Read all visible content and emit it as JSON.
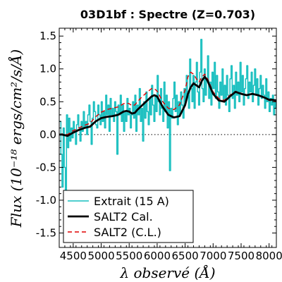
{
  "chart_data": {
    "type": "line",
    "title": "03D1bf : Spectre (Z=0.703)",
    "xlabel": "λ observé (Å)",
    "ylabel": "Flux (10⁻¹⁸ ergs/cm²/s/Å)",
    "xlim": [
      4250,
      8130
    ],
    "ylim": [
      -1.72,
      1.62
    ],
    "xticks": [
      "4500",
      "5000",
      "5500",
      "6000",
      "6500",
      "7000",
      "7500",
      "8000"
    ],
    "yticks": [
      "1.5",
      "1.0",
      "0.5",
      "0.0",
      "-0.5",
      "-1.0",
      "-1.5"
    ],
    "zero_line": true,
    "legend_position": "bottom-left",
    "colors": {
      "extrait": "#17bfbf",
      "salt2_cal": "#000000",
      "salt2_cl": "#e00000"
    },
    "series": [
      {
        "name": "Extrait (15 A)",
        "style": "steps",
        "x": [
          4250,
          4280,
          4300,
          4320,
          4340,
          4360,
          4380,
          4400,
          4420,
          4440,
          4460,
          4480,
          4500,
          4520,
          4540,
          4560,
          4580,
          4600,
          4620,
          4640,
          4660,
          4680,
          4700,
          4720,
          4740,
          4760,
          4780,
          4800,
          4820,
          4840,
          4860,
          4880,
          4900,
          4920,
          4940,
          4960,
          4980,
          5000,
          5020,
          5040,
          5060,
          5080,
          5100,
          5120,
          5140,
          5160,
          5180,
          5200,
          5220,
          5240,
          5260,
          5280,
          5300,
          5320,
          5340,
          5360,
          5380,
          5400,
          5420,
          5440,
          5460,
          5480,
          5500,
          5520,
          5540,
          5560,
          5580,
          5600,
          5620,
          5640,
          5660,
          5680,
          5700,
          5720,
          5740,
          5760,
          5780,
          5800,
          5820,
          5840,
          5860,
          5880,
          5900,
          5920,
          5940,
          5960,
          5980,
          6000,
          6020,
          6040,
          6060,
          6080,
          6100,
          6120,
          6140,
          6160,
          6180,
          6200,
          6220,
          6240,
          6260,
          6280,
          6300,
          6320,
          6340,
          6360,
          6380,
          6400,
          6420,
          6440,
          6460,
          6480,
          6500,
          6520,
          6540,
          6560,
          6580,
          6600,
          6620,
          6640,
          6660,
          6680,
          6700,
          6720,
          6740,
          6760,
          6780,
          6800,
          6820,
          6840,
          6860,
          6880,
          6900,
          6920,
          6940,
          6960,
          6980,
          7000,
          7020,
          7040,
          7060,
          7080,
          7100,
          7120,
          7140,
          7160,
          7180,
          7200,
          7220,
          7240,
          7260,
          7280,
          7300,
          7320,
          7340,
          7360,
          7380,
          7400,
          7420,
          7440,
          7460,
          7480,
          7500,
          7520,
          7540,
          7560,
          7580,
          7600,
          7620,
          7640,
          7660,
          7680,
          7700,
          7720,
          7740,
          7760,
          7780,
          7800,
          7820,
          7840,
          7860,
          7880,
          7900,
          7920,
          7940,
          7960,
          7980,
          8000,
          8020,
          8040,
          8060,
          8080,
          8100,
          8120
        ],
        "y": [
          0.2,
          -0.3,
          -0.8,
          0.1,
          -0.5,
          -1.2,
          0.3,
          -0.2,
          0.25,
          -0.1,
          0.1,
          -0.05,
          0.2,
          0.05,
          -0.15,
          0.15,
          0.3,
          0.1,
          -0.1,
          0.2,
          0.05,
          0.35,
          0.1,
          0.2,
          0.0,
          0.3,
          0.45,
          0.2,
          -0.15,
          0.25,
          0.5,
          0.35,
          0.15,
          0.1,
          0.45,
          0.3,
          0.15,
          0.5,
          0.2,
          0.35,
          0.1,
          0.6,
          0.3,
          0.45,
          0.05,
          0.55,
          0.3,
          0.4,
          0.2,
          0.5,
          0.35,
          -0.3,
          0.45,
          0.3,
          0.6,
          0.2,
          0.45,
          0.05,
          0.35,
          0.2,
          0.55,
          0.3,
          0.4,
          0.1,
          0.3,
          0.5,
          0.25,
          0.6,
          0.05,
          0.45,
          0.3,
          0.7,
          0.2,
          0.4,
          -0.1,
          0.5,
          0.25,
          0.65,
          0.35,
          0.15,
          0.55,
          0.3,
          0.75,
          0.45,
          0.2,
          0.6,
          0.35,
          0.9,
          0.5,
          0.3,
          0.7,
          0.4,
          0.2,
          0.8,
          0.35,
          0.6,
          0.1,
          0.5,
          -0.55,
          0.4,
          0.25,
          0.55,
          0.8,
          0.35,
          0.6,
          0.15,
          0.5,
          0.3,
          0.65,
          0.45,
          0.25,
          0.7,
          0.5,
          0.9,
          0.6,
          0.4,
          1.15,
          0.7,
          0.5,
          0.9,
          0.4,
          0.8,
          1.1,
          0.65,
          0.45,
          0.95,
          1.45,
          0.7,
          0.5,
          1.0,
          0.6,
          0.85,
          1.2,
          0.55,
          0.8,
          0.45,
          0.95,
          0.7,
          1.1,
          0.55,
          0.9,
          0.65,
          0.4,
          0.8,
          0.6,
          1.0,
          0.5,
          0.75,
          0.45,
          0.9,
          0.6,
          0.35,
          0.85,
          1.05,
          0.55,
          0.75,
          0.4,
          0.95,
          0.6,
          0.8,
          0.5,
          1.1,
          0.65,
          0.9,
          0.45,
          0.7,
          0.85,
          1.05,
          0.55,
          0.8,
          0.65,
          0.95,
          0.5,
          0.75,
          1.0,
          0.6,
          0.85,
          0.45,
          0.7,
          0.9,
          0.55,
          0.75,
          0.6,
          0.4,
          0.85,
          0.5,
          0.65,
          0.35,
          0.55,
          0.45,
          0.6,
          0.3,
          0.5,
          0.4
        ]
      },
      {
        "name": "SALT2 Cal.",
        "style": "solid",
        "x": [
          4250,
          4300,
          4400,
          4500,
          4600,
          4700,
          4800,
          4900,
          5000,
          5100,
          5200,
          5300,
          5400,
          5450,
          5500,
          5550,
          5600,
          5650,
          5700,
          5800,
          5900,
          5950,
          6000,
          6100,
          6200,
          6300,
          6400,
          6500,
          6550,
          6600,
          6650,
          6700,
          6750,
          6800,
          6850,
          6900,
          6950,
          7000,
          7100,
          7200,
          7300,
          7400,
          7500,
          7600,
          7700,
          7800,
          7900,
          8000,
          8050,
          8130
        ],
        "y": [
          0.0,
          0.0,
          -0.02,
          0.03,
          0.07,
          0.1,
          0.12,
          0.2,
          0.25,
          0.27,
          0.28,
          0.3,
          0.35,
          0.36,
          0.35,
          0.32,
          0.33,
          0.38,
          0.42,
          0.5,
          0.58,
          0.6,
          0.58,
          0.42,
          0.3,
          0.26,
          0.28,
          0.45,
          0.62,
          0.72,
          0.78,
          0.75,
          0.72,
          0.82,
          0.88,
          0.82,
          0.72,
          0.62,
          0.52,
          0.5,
          0.58,
          0.65,
          0.62,
          0.6,
          0.62,
          0.6,
          0.57,
          0.53,
          0.53,
          0.52
        ]
      },
      {
        "name": "SALT2 (C.L.)",
        "style": "dashed",
        "x": [
          4250,
          4300,
          4400,
          4500,
          4600,
          4700,
          4800,
          4900,
          5000,
          5100,
          5200,
          5300,
          5400,
          5450,
          5500,
          5550,
          5600,
          5650,
          5700,
          5800,
          5900,
          5950,
          6000,
          6100,
          6200,
          6300,
          6400,
          6500,
          6550,
          6600,
          6650,
          6700,
          6750,
          6800,
          6850,
          6900,
          6950,
          7000,
          7100,
          7200,
          7300,
          7400,
          7500,
          7600,
          7700,
          7800,
          7900,
          8000,
          8050,
          8130
        ],
        "y": [
          0.0,
          0.01,
          0.0,
          0.06,
          0.1,
          0.14,
          0.17,
          0.27,
          0.34,
          0.38,
          0.4,
          0.42,
          0.47,
          0.48,
          0.47,
          0.44,
          0.45,
          0.5,
          0.55,
          0.63,
          0.7,
          0.7,
          0.66,
          0.5,
          0.4,
          0.38,
          0.45,
          0.68,
          0.88,
          0.95,
          0.92,
          0.85,
          0.8,
          0.88,
          0.92,
          0.85,
          0.75,
          0.65,
          0.55,
          0.52,
          0.6,
          0.66,
          0.63,
          0.6,
          0.62,
          0.6,
          0.56,
          0.52,
          0.51,
          0.5
        ]
      }
    ]
  }
}
